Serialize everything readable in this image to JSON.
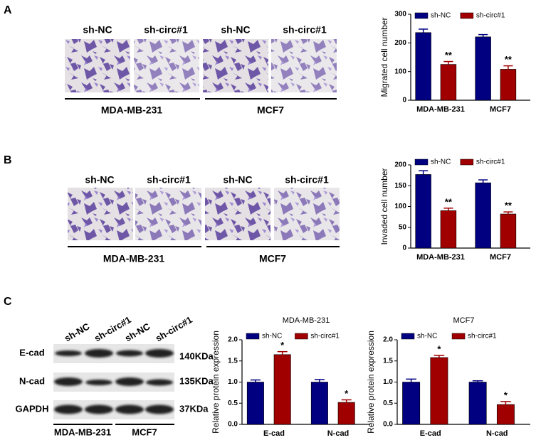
{
  "figure": {
    "panels": [
      "A",
      "B",
      "C"
    ],
    "migration": {
      "lanes": [
        "sh-NC",
        "sh-circ#1",
        "sh-NC",
        "sh-circ#1"
      ],
      "groups": [
        "MDA-MB-231",
        "MCF7"
      ]
    },
    "invasion": {
      "lanes": [
        "sh-NC",
        "sh-circ#1",
        "sh-NC",
        "sh-circ#1"
      ],
      "groups": [
        "MDA-MB-231",
        "MCF7"
      ]
    },
    "blot": {
      "lanes": [
        "sh-NC",
        "sh-circ#1",
        "sh-NC",
        "sh-circ#1"
      ],
      "rows": [
        "E-cad",
        "N-cad",
        "GAPDH"
      ],
      "sizes": [
        "140KDa",
        "135KDa",
        "37KDa"
      ],
      "groups": [
        "MDA-MB-231",
        "MCF7"
      ]
    }
  },
  "chart_data": [
    {
      "type": "bar",
      "ylabel": "Migrated cell number",
      "categories": [
        "MDA-MB-231",
        "MCF7"
      ],
      "series": [
        {
          "name": "sh-NC",
          "color": "#000080",
          "values": [
            236,
            221
          ],
          "errors": [
            12,
            8
          ]
        },
        {
          "name": "sh-circ#1",
          "color": "#a00000",
          "values": [
            125,
            108
          ],
          "errors": [
            10,
            12
          ],
          "annotations": [
            "**",
            "**"
          ]
        }
      ],
      "ylim": [
        0,
        300
      ],
      "yticks": [
        0,
        100,
        200,
        300
      ],
      "legend": "top"
    },
    {
      "type": "bar",
      "ylabel": "Invaded cell number",
      "categories": [
        "MDA-MB-231",
        "MCF7"
      ],
      "series": [
        {
          "name": "sh-NC",
          "color": "#000080",
          "values": [
            177,
            157
          ],
          "errors": [
            9,
            7
          ]
        },
        {
          "name": "sh-circ#1",
          "color": "#a00000",
          "values": [
            90,
            82
          ],
          "errors": [
            6,
            5
          ],
          "annotations": [
            "**",
            "**"
          ]
        }
      ],
      "ylim": [
        0,
        200
      ],
      "yticks": [
        0,
        50,
        100,
        150,
        200
      ],
      "legend": "top"
    },
    {
      "type": "bar",
      "title": "MDA-MB-231",
      "ylabel": "Relative protein expression",
      "categories": [
        "E-cad",
        "N-cad"
      ],
      "series": [
        {
          "name": "sh-NC",
          "color": "#000080",
          "values": [
            1.0,
            1.0
          ],
          "errors": [
            0.05,
            0.06
          ]
        },
        {
          "name": "sh-circ#1",
          "color": "#a00000",
          "values": [
            1.65,
            0.52
          ],
          "errors": [
            0.07,
            0.06
          ],
          "annotations": [
            "*",
            "*"
          ]
        }
      ],
      "ylim": [
        0,
        2.0
      ],
      "yticks": [
        {
          "value": 0,
          "label": "0.0"
        },
        0.5,
        {
          "value": 1,
          "label": "1.0"
        },
        1.5,
        {
          "value": 2,
          "label": "2.0"
        }
      ],
      "legend": "top"
    },
    {
      "type": "bar",
      "title": "MCF7",
      "ylabel": "Relative protein expression",
      "categories": [
        "E-cad",
        "N-cad"
      ],
      "series": [
        {
          "name": "sh-NC",
          "color": "#000080",
          "values": [
            1.0,
            1.0
          ],
          "errors": [
            0.07,
            0.03
          ]
        },
        {
          "name": "sh-circ#1",
          "color": "#a00000",
          "values": [
            1.58,
            0.47
          ],
          "errors": [
            0.05,
            0.07
          ],
          "annotations": [
            "*",
            "*"
          ]
        }
      ],
      "ylim": [
        0,
        2.0
      ],
      "yticks": [
        {
          "value": 0,
          "label": "0.0"
        },
        0.5,
        {
          "value": 1,
          "label": "1.0"
        },
        1.5,
        {
          "value": 2,
          "label": "2.0"
        }
      ],
      "legend": "top"
    }
  ]
}
